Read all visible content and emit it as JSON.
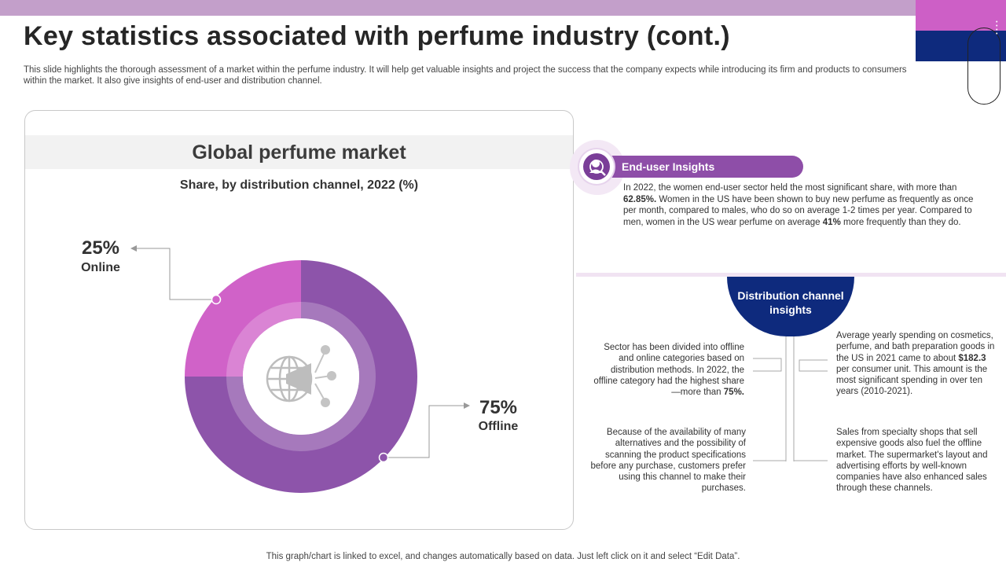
{
  "header": {
    "title": "Key statistics associated with perfume industry (cont.)",
    "intro": "This slide highlights the thorough assessment of a market within the perfume industry. It will help get valuable insights and project the success that the company expects while introducing its firm and products to consumers within the market. It also give insights of end-user and distribution channel."
  },
  "chart_data": {
    "type": "pie",
    "variant": "donut",
    "title": "Global perfume market",
    "subtitle": "Share, by distribution channel, 2022 (%)",
    "categories": [
      "Online",
      "Offline"
    ],
    "values": [
      25,
      75
    ],
    "labels": [
      "25%",
      "75%"
    ],
    "colors": [
      "#d062c8",
      "#8d54aa"
    ],
    "center_icon": "globe-megaphone-icon"
  },
  "end_user": {
    "title": "End-user Insights",
    "icon": "user-search-icon",
    "text_a": "In 2022, the women end-user sector held the most significant share, with more than ",
    "bold_a": "62.85%.",
    "text_b": " Women in the US have been shown to buy new perfume as frequently as once per month, compared to males, who do so on average 1-2 times per year. Compared to men, women in the US wear perfume on average ",
    "bold_b": "41%",
    "text_c": "  more frequently than they do."
  },
  "distribution": {
    "title": "Distribution channel insights",
    "left_top_a": "Sector has been divided into offline and online categories based on distribution methods. In 2022, the offline category had the highest share—more than ",
    "left_top_bold": "75%.",
    "left_bottom": "Because of the availability of many alternatives and the possibility of scanning the product specifications before any purchase, customers prefer using this channel to make their purchases.",
    "right_top_a": "Average yearly spending on cosmetics, perfume, and bath preparation goods in the US in 2021 came to about ",
    "right_top_bold": "$182.3",
    "right_top_b": " per consumer unit. This amount is the most significant spending in over ten years (2010-2021).",
    "right_bottom": "Sales from specialty shops that sell expensive goods also fuel the offline market. The supermarket's layout and advertising efforts by well-known companies have also enhanced sales through these channels."
  },
  "footer": {
    "note": "This graph/chart is linked to excel,  and changes automatically based on data. Just left click on it and select “Edit Data”."
  }
}
